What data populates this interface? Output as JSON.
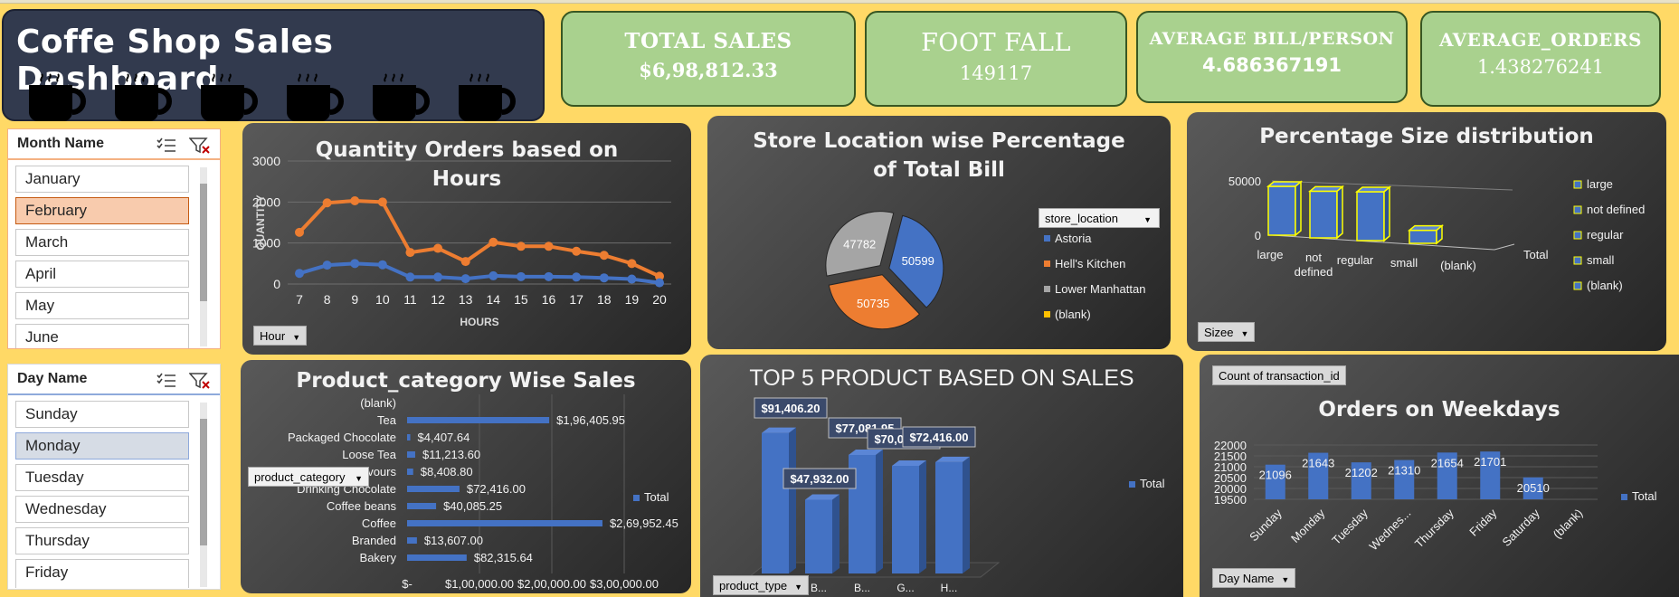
{
  "dashboard": {
    "title": "Coffe Shop Sales Dashboard",
    "cup_count": 6
  },
  "kpis": [
    {
      "label": "TOTAL SALES",
      "value": "$6,98,812.33"
    },
    {
      "label": "FOOT FALL",
      "value": "149117"
    },
    {
      "label": "AVERAGE BILL/PERSON",
      "value": "4.686367191"
    },
    {
      "label": "AVERAGE_ORDERS",
      "value": "1.438276241"
    }
  ],
  "month_slicer": {
    "header": "Month Name",
    "items": [
      "January",
      "February",
      "March",
      "April",
      "May",
      "June"
    ],
    "selected": "February"
  },
  "day_slicer": {
    "header": "Day Name",
    "items": [
      "Sunday",
      "Monday",
      "Tuesday",
      "Wednesday",
      "Thursday",
      "Friday"
    ],
    "selected": "Monday"
  },
  "field_buttons": {
    "hour": "Hour",
    "store_location": "store_location",
    "size": "Sizee",
    "product_category": "product_category",
    "product_type": "product_type",
    "day_name": "Day Name",
    "count_tx": "Count of transaction_id"
  },
  "colors": {
    "orange": "#ed7d31",
    "blue": "#4472c4",
    "gray": "#a5a5a5",
    "yellow": "#ffc000",
    "kpi_bg": "#a9d18e",
    "slicer_selected_month": "#f8cbad",
    "slicer_selected_day": "#d6dce5"
  },
  "chart_data": [
    {
      "id": "hours",
      "type": "line",
      "title": "Quantity Orders based on Hours",
      "xlabel": "HOURS",
      "ylabel": "QUANTITY",
      "x": [
        7,
        8,
        9,
        10,
        11,
        12,
        13,
        14,
        15,
        16,
        17,
        18,
        19,
        20
      ],
      "ylim": [
        0,
        3000
      ],
      "yticks": [
        0,
        1000,
        2000,
        3000
      ],
      "series": [
        {
          "color": "#ed7d31",
          "values": [
            1260,
            1980,
            2030,
            2000,
            770,
            870,
            550,
            1020,
            920,
            920,
            800,
            700,
            500,
            190
          ]
        },
        {
          "color": "#4472c4",
          "values": [
            260,
            460,
            500,
            470,
            170,
            170,
            130,
            200,
            180,
            180,
            170,
            150,
            120,
            30
          ]
        }
      ]
    },
    {
      "id": "store",
      "type": "pie",
      "title": "Store Location wise Percentage of Total Bill",
      "legend": [
        "Astoria",
        "Hell's Kitchen",
        "Lower Manhattan",
        "(blank)"
      ],
      "values": [
        50599,
        50735,
        47782
      ],
      "colors": [
        "#4472c4",
        "#ed7d31",
        "#a5a5a5",
        "#ffc000"
      ],
      "legend_position": "right"
    },
    {
      "id": "size",
      "type": "bar",
      "title": "Percentage Size distribution",
      "categories": [
        "large",
        "not defined",
        "regular",
        "small",
        "(blank)"
      ],
      "values": [
        45000,
        43000,
        45000,
        12000,
        0
      ],
      "yticks": [
        0,
        50000
      ],
      "ylim": [
        0,
        55000
      ],
      "axis_tail": "Total",
      "legend": [
        "large",
        "not defined",
        "regular",
        "small",
        "(blank)"
      ]
    },
    {
      "id": "category",
      "type": "bar",
      "title": "Product_category Wise Sales",
      "orientation": "horizontal",
      "categories": [
        "(blank)",
        "Tea",
        "Packaged Chocolate",
        "Loose Tea",
        "Flavours",
        "Drinking Chocolate",
        "Coffee beans",
        "Coffee",
        "Branded",
        "Bakery"
      ],
      "values": [
        0,
        196405.95,
        4407.64,
        11213.6,
        8408.8,
        72416.0,
        40085.25,
        269952.45,
        13607.0,
        82315.64
      ],
      "labels": [
        "",
        "$1,96,405.95",
        "$4,407.64",
        "$11,213.60",
        "$8,408.80",
        "$72,416.00",
        "$40,085.25",
        "$2,69,952.45",
        "$13,607.00",
        "$82,315.64"
      ],
      "xticks": [
        "$-",
        "$1,00,000.00",
        "$2,00,000.00",
        "$3,00,000.00"
      ],
      "xlim": [
        0,
        300000
      ],
      "legend": [
        "Total"
      ]
    },
    {
      "id": "top5",
      "type": "bar",
      "title": "TOP 5 PRODUCT BASED ON SALES",
      "categories": [
        "B...",
        "B...",
        "B...",
        "G...",
        "H..."
      ],
      "values": [
        91406.2,
        47932.0,
        77081.95,
        70034.0,
        72416.0
      ],
      "labels": [
        "$91,406.20",
        "$47,932.00",
        "$77,081.95",
        "$70,034.00",
        "$72,416.00"
      ],
      "ylim": [
        0,
        100000
      ],
      "legend": [
        "Total"
      ]
    },
    {
      "id": "weekdays",
      "type": "bar",
      "title": "Orders on Weekdays",
      "categories": [
        "Sunday",
        "Monday",
        "Tuesday",
        "Wednes...",
        "Thursday",
        "Friday",
        "Saturday",
        "(blank)"
      ],
      "values": [
        21096,
        21643,
        21202,
        21310,
        21654,
        21701,
        20510,
        null
      ],
      "ylim": [
        19500,
        22000
      ],
      "yticks": [
        19500,
        20000,
        20500,
        21000,
        21500,
        22000
      ],
      "legend": [
        "Total"
      ]
    }
  ]
}
